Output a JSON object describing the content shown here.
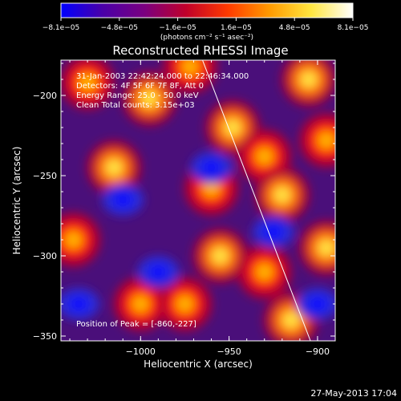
{
  "chart_data": {
    "type": "heatmap",
    "title": "Reconstructed RHESSI Image",
    "xlabel": "Heliocentric X (arcsec)",
    "ylabel": "Heliocentric Y (arcsec)",
    "xlim": [
      -1045,
      -890
    ],
    "ylim": [
      -353,
      -178
    ],
    "xticks": [
      -1000,
      -950,
      -900
    ],
    "xtick_labels": [
      "−1000",
      "−950",
      "−900"
    ],
    "yticks": [
      -200,
      -250,
      -300,
      -350
    ],
    "ytick_labels": [
      "−200",
      "−250",
      "−300",
      "−350"
    ],
    "colorbar": {
      "min": -8.1e-05,
      "max": 8.1e-05,
      "tick_labels": [
        "−8.1e−05",
        "−4.8e−05",
        "−1.6e−05",
        "1.6e−05",
        "4.8e−05",
        "8.1e−05"
      ],
      "unit_label": "(photons cm⁻² s⁻¹ asec⁻²)",
      "colors": [
        "#0000ff",
        "#4a00a8",
        "#7a0080",
        "#c0002a",
        "#ff3a00",
        "#ff9a00",
        "#ffe640",
        "#ffffff"
      ]
    },
    "annotations": [
      "31-Jan-2003 22:42:24.000 to 22:46:34.000",
      "Detectors: 4F 5F 6F 7F 8F, Att 0",
      "Energy Range: 25.0 - 50.0 keV",
      "Clean    Total counts: 3.15e+03"
    ],
    "peak_label": "Position of Peak = [-860,-227]",
    "limb_line": {
      "x": [
        -965,
        -904
      ],
      "y": [
        -178,
        -353
      ]
    },
    "bright_sources": [
      {
        "x": -1030,
        "y": -192
      },
      {
        "x": -995,
        "y": -202
      },
      {
        "x": -972,
        "y": -182
      },
      {
        "x": -948,
        "y": -220
      },
      {
        "x": -930,
        "y": -238
      },
      {
        "x": -905,
        "y": -190
      },
      {
        "x": -895,
        "y": -228
      },
      {
        "x": -920,
        "y": -262
      },
      {
        "x": -960,
        "y": -258
      },
      {
        "x": -1015,
        "y": -245
      },
      {
        "x": -1038,
        "y": -290
      },
      {
        "x": -955,
        "y": -300
      },
      {
        "x": -930,
        "y": -310
      },
      {
        "x": -895,
        "y": -295
      },
      {
        "x": -975,
        "y": -330
      },
      {
        "x": -915,
        "y": -340
      },
      {
        "x": -1000,
        "y": -330
      }
    ],
    "faint_regions": [
      {
        "x": -1010,
        "y": -265
      },
      {
        "x": -960,
        "y": -245
      },
      {
        "x": -990,
        "y": -310
      },
      {
        "x": -925,
        "y": -285
      },
      {
        "x": -900,
        "y": -330
      },
      {
        "x": -1035,
        "y": -330
      }
    ]
  },
  "footer": {
    "timestamp": "27-May-2013 17:04"
  }
}
